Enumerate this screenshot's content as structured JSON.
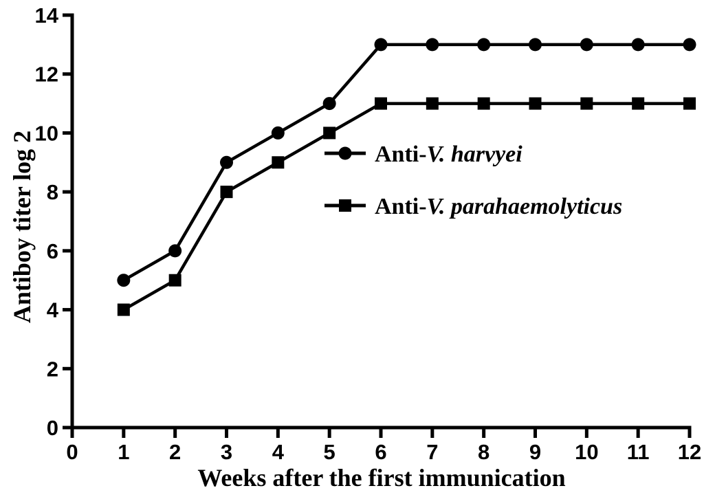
{
  "figure": {
    "background": "#ffffff",
    "ink_color": "#000000"
  },
  "chart_data": {
    "type": "line",
    "title": "",
    "xlabel": "Weeks after the first immunication",
    "ylabel": "Antiboy titer log 2",
    "x": [
      1,
      2,
      3,
      4,
      5,
      6,
      7,
      8,
      9,
      10,
      11,
      12
    ],
    "xlim": [
      0,
      12
    ],
    "ylim": [
      0,
      14
    ],
    "x_ticks": [
      0,
      1,
      2,
      3,
      4,
      5,
      6,
      7,
      8,
      9,
      10,
      11,
      12
    ],
    "y_ticks": [
      0,
      2,
      4,
      6,
      8,
      10,
      12,
      14
    ],
    "grid": false,
    "legend": {
      "position": "inside upper right",
      "items": [
        {
          "prefix": "Anti-",
          "species": "V. harvyei",
          "marker": "circle"
        },
        {
          "prefix": "Anti-",
          "species": "V. parahaemolyticus",
          "marker": "square"
        }
      ]
    },
    "series": [
      {
        "name": "Anti-V. harvyei",
        "marker": "circle",
        "color": "#000000",
        "values": [
          5,
          6,
          9,
          10,
          11,
          13,
          13,
          13,
          13,
          13,
          13,
          13
        ]
      },
      {
        "name": "Anti-V. parahaemolyticus",
        "marker": "square",
        "color": "#000000",
        "values": [
          4,
          5,
          8,
          9,
          10,
          11,
          11,
          11,
          11,
          11,
          11,
          11
        ]
      }
    ]
  }
}
